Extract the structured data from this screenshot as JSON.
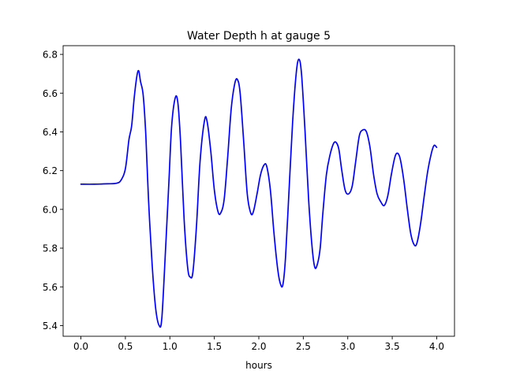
{
  "chart_data": {
    "type": "line",
    "title": "Water Depth h at gauge 5",
    "xlabel": "hours",
    "ylabel": "",
    "xlim": [
      -0.2,
      4.2
    ],
    "ylim": [
      5.345,
      6.845
    ],
    "xticks": [
      0.0,
      0.5,
      1.0,
      1.5,
      2.0,
      2.5,
      3.0,
      3.5,
      4.0
    ],
    "xtick_labels": [
      "0.0",
      "0.5",
      "1.0",
      "1.5",
      "2.0",
      "2.5",
      "3.0",
      "3.5",
      "4.0"
    ],
    "yticks": [
      5.4,
      5.6,
      5.8,
      6.0,
      6.2,
      6.4,
      6.6,
      6.8
    ],
    "ytick_labels": [
      "5.4",
      "5.6",
      "5.8",
      "6.0",
      "6.2",
      "6.4",
      "6.6",
      "6.8"
    ],
    "grid": false,
    "series": [
      {
        "color": "#0000ff",
        "points": [
          [
            0.0,
            6.13
          ],
          [
            0.15,
            6.13
          ],
          [
            0.3,
            6.132
          ],
          [
            0.4,
            6.135
          ],
          [
            0.45,
            6.15
          ],
          [
            0.5,
            6.21
          ],
          [
            0.54,
            6.36
          ],
          [
            0.57,
            6.43
          ],
          [
            0.6,
            6.58
          ],
          [
            0.63,
            6.69
          ],
          [
            0.65,
            6.715
          ],
          [
            0.67,
            6.66
          ],
          [
            0.7,
            6.59
          ],
          [
            0.73,
            6.38
          ],
          [
            0.76,
            6.05
          ],
          [
            0.8,
            5.72
          ],
          [
            0.84,
            5.49
          ],
          [
            0.88,
            5.4
          ],
          [
            0.91,
            5.44
          ],
          [
            0.95,
            5.78
          ],
          [
            0.99,
            6.15
          ],
          [
            1.02,
            6.43
          ],
          [
            1.06,
            6.575
          ],
          [
            1.09,
            6.55
          ],
          [
            1.12,
            6.35
          ],
          [
            1.16,
            5.95
          ],
          [
            1.2,
            5.7
          ],
          [
            1.23,
            5.65
          ],
          [
            1.26,
            5.68
          ],
          [
            1.3,
            5.92
          ],
          [
            1.34,
            6.25
          ],
          [
            1.39,
            6.46
          ],
          [
            1.42,
            6.45
          ],
          [
            1.46,
            6.3
          ],
          [
            1.5,
            6.1
          ],
          [
            1.54,
            5.99
          ],
          [
            1.57,
            5.98
          ],
          [
            1.61,
            6.05
          ],
          [
            1.65,
            6.27
          ],
          [
            1.69,
            6.52
          ],
          [
            1.73,
            6.65
          ],
          [
            1.76,
            6.67
          ],
          [
            1.79,
            6.6
          ],
          [
            1.83,
            6.35
          ],
          [
            1.87,
            6.08
          ],
          [
            1.91,
            5.98
          ],
          [
            1.94,
            5.99
          ],
          [
            1.98,
            6.08
          ],
          [
            2.02,
            6.18
          ],
          [
            2.06,
            6.23
          ],
          [
            2.09,
            6.22
          ],
          [
            2.13,
            6.1
          ],
          [
            2.17,
            5.88
          ],
          [
            2.21,
            5.7
          ],
          [
            2.24,
            5.62
          ],
          [
            2.27,
            5.61
          ],
          [
            2.3,
            5.75
          ],
          [
            2.34,
            6.1
          ],
          [
            2.38,
            6.45
          ],
          [
            2.42,
            6.7
          ],
          [
            2.45,
            6.775
          ],
          [
            2.48,
            6.7
          ],
          [
            2.52,
            6.4
          ],
          [
            2.56,
            6.05
          ],
          [
            2.6,
            5.8
          ],
          [
            2.63,
            5.7
          ],
          [
            2.66,
            5.72
          ],
          [
            2.69,
            5.8
          ],
          [
            2.72,
            5.98
          ],
          [
            2.76,
            6.18
          ],
          [
            2.8,
            6.28
          ],
          [
            2.84,
            6.34
          ],
          [
            2.87,
            6.345
          ],
          [
            2.9,
            6.31
          ],
          [
            2.93,
            6.21
          ],
          [
            2.97,
            6.1
          ],
          [
            3.01,
            6.08
          ],
          [
            3.05,
            6.12
          ],
          [
            3.09,
            6.25
          ],
          [
            3.13,
            6.38
          ],
          [
            3.17,
            6.41
          ],
          [
            3.21,
            6.4
          ],
          [
            3.25,
            6.32
          ],
          [
            3.29,
            6.18
          ],
          [
            3.33,
            6.08
          ],
          [
            3.37,
            6.04
          ],
          [
            3.41,
            6.02
          ],
          [
            3.45,
            6.07
          ],
          [
            3.49,
            6.18
          ],
          [
            3.53,
            6.27
          ],
          [
            3.56,
            6.29
          ],
          [
            3.59,
            6.26
          ],
          [
            3.63,
            6.15
          ],
          [
            3.67,
            6.0
          ],
          [
            3.71,
            5.87
          ],
          [
            3.75,
            5.815
          ],
          [
            3.78,
            5.83
          ],
          [
            3.82,
            5.93
          ],
          [
            3.86,
            6.07
          ],
          [
            3.9,
            6.2
          ],
          [
            3.94,
            6.29
          ],
          [
            3.97,
            6.33
          ],
          [
            4.0,
            6.32
          ]
        ]
      }
    ]
  }
}
